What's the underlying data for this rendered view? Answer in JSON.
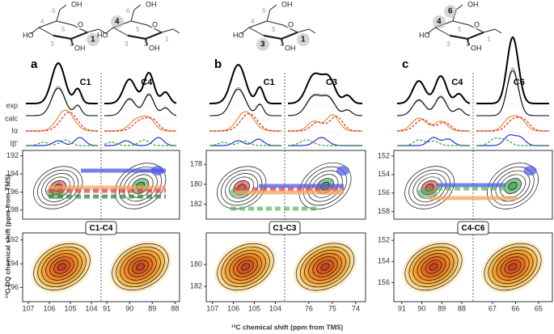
{
  "axis_labels": {
    "y": "¹³C DQ chemical shift (ppm from TMS)",
    "x": "¹³C chemical shift (ppm from TMS)"
  },
  "row_labels": [
    "exp",
    "calc",
    "Iα",
    "Iβ'"
  ],
  "panels": [
    {
      "label": "a",
      "peaks": [
        "C1",
        "C4"
      ],
      "pair": "C1-C4",
      "molecule": [
        {
          "text": "6"
        },
        {
          "text": "OH"
        },
        {
          "text": "4"
        },
        {
          "text": "5"
        },
        {
          "text": "O"
        },
        {
          "text": "HO"
        },
        {
          "text": "3"
        },
        {
          "text": "2"
        },
        {
          "text": "OH"
        },
        {
          "text": "1",
          "bold": true
        },
        {
          "text": "6"
        },
        {
          "text": "OH"
        },
        {
          "text": "4",
          "bold": true
        },
        {
          "text": "5"
        },
        {
          "text": "O"
        },
        {
          "text": "HO"
        },
        {
          "text": "3"
        },
        {
          "text": "2"
        },
        {
          "text": "OH"
        },
        {
          "text": "1"
        }
      ],
      "x_left": {
        "lim": [
          107.27,
          103.54
        ],
        "ticks": [
          107,
          106,
          105,
          104
        ]
      },
      "x_right": {
        "lim": [
          91.25,
          87.8
        ],
        "ticks": [
          91,
          90,
          89,
          88
        ]
      },
      "y_top": {
        "lim": [
          191.4,
          199
        ],
        "ticks": [
          192,
          194,
          196,
          198
        ]
      },
      "y_bottom": {
        "lim": [
          191.4,
          197.2
        ],
        "ticks": [
          192,
          194,
          196
        ]
      }
    },
    {
      "label": "b",
      "peaks": [
        "C1",
        "C3"
      ],
      "pair": "C1-C3",
      "molecule": [
        {
          "text": "6"
        },
        {
          "text": "OH"
        },
        {
          "text": "4"
        },
        {
          "text": "5"
        },
        {
          "text": "O"
        },
        {
          "text": "HO"
        },
        {
          "text": "3",
          "bold": true
        },
        {
          "text": "2"
        },
        {
          "text": "OH"
        },
        {
          "text": "1",
          "bold": true
        }
      ],
      "x_left": {
        "lim": [
          107.3,
          103.55
        ],
        "ticks": [
          107,
          106,
          105,
          104
        ]
      },
      "x_right": {
        "lim": [
          77.03,
          73.58
        ],
        "ticks": [
          76,
          75,
          74
        ]
      },
      "y_top": {
        "lim": [
          176.6,
          183.5
        ],
        "ticks": [
          178,
          180,
          182
        ]
      },
      "y_bottom": {
        "lim": [
          177.1,
          183.4
        ],
        "ticks": [
          180,
          182
        ]
      }
    },
    {
      "label": "c",
      "peaks": [
        "C4",
        "C6"
      ],
      "pair": "C4-C6",
      "molecule": [
        {
          "text": "6",
          "bold": true
        },
        {
          "text": "OH"
        },
        {
          "text": "4",
          "bold": true
        },
        {
          "text": "5"
        },
        {
          "text": "O"
        },
        {
          "text": "HO"
        },
        {
          "text": "3"
        },
        {
          "text": "2"
        },
        {
          "text": "OH"
        },
        {
          "text": "1"
        }
      ],
      "x_left": {
        "lim": [
          91.4,
          87.43
        ],
        "ticks": [
          91,
          90,
          89,
          88
        ]
      },
      "x_right": {
        "lim": [
          67.84,
          64.4
        ],
        "ticks": [
          67,
          66,
          65
        ]
      },
      "y_top": {
        "lim": [
          151.4,
          158.8
        ],
        "ticks": [
          152,
          154,
          156,
          158
        ]
      },
      "y_bottom": {
        "lim": [
          151.3,
          157.8
        ],
        "ticks": [
          152,
          154,
          156
        ]
      }
    }
  ]
}
